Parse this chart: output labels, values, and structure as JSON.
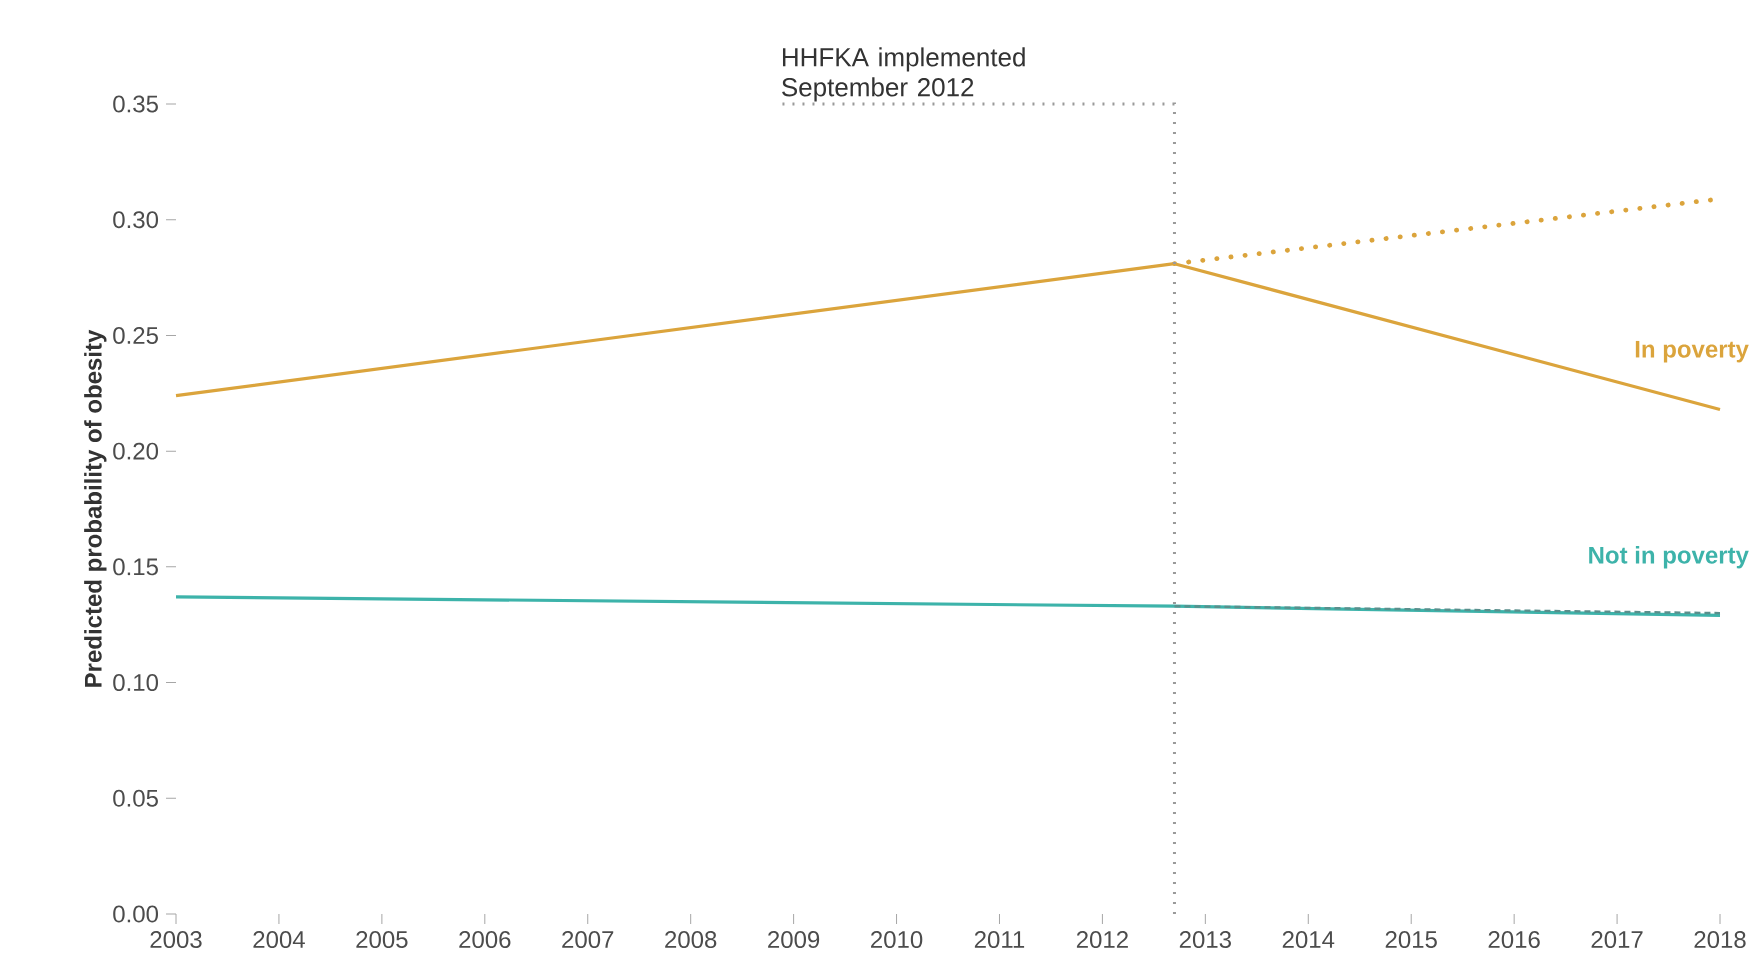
{
  "chart_data": {
    "type": "line",
    "ylabel": "Predicted probability of obesity",
    "xlim": [
      2003,
      2018
    ],
    "ylim": [
      0,
      0.35
    ],
    "xticks": [
      2003,
      2004,
      2005,
      2006,
      2007,
      2008,
      2009,
      2010,
      2011,
      2012,
      2013,
      2014,
      2015,
      2016,
      2017,
      2018
    ],
    "yticks": [
      {
        "value": 0,
        "label": "0.00"
      },
      {
        "value": 0.05,
        "label": "0.05"
      },
      {
        "value": 0.1,
        "label": "0.10"
      },
      {
        "value": 0.15,
        "label": "0.15"
      },
      {
        "value": 0.2,
        "label": "0.20"
      },
      {
        "value": 0.25,
        "label": "0.25"
      },
      {
        "value": 0.3,
        "label": "0.30"
      },
      {
        "value": 0.35,
        "label": "0.35"
      }
    ],
    "series": [
      {
        "name": "In poverty",
        "color": "#dba43c",
        "x": [
          2003,
          2012.7,
          2018
        ],
        "values": [
          0.224,
          0.281,
          0.218
        ],
        "line_style": "solid"
      },
      {
        "color": "#dba43c",
        "x": [
          2012.7,
          2018
        ],
        "values": [
          0.281,
          0.309
        ],
        "line_style": "dotted"
      },
      {
        "name": "Not in poverty",
        "color": "#3db3aa",
        "x": [
          2003,
          2012.7,
          2018
        ],
        "values": [
          0.137,
          0.133,
          0.129
        ],
        "line_style": "solid"
      },
      {
        "color": "#5a8f8c",
        "x": [
          2012.7,
          2018
        ],
        "values": [
          0.133,
          0.13
        ],
        "line_style": "dashed"
      }
    ],
    "ref_lines": [
      {
        "axis": "x",
        "value": 2012.7,
        "label": "HHFKA implemented September 2012",
        "color": "#9a9a9a",
        "line_style": "dotted"
      }
    ],
    "legend": false,
    "grid": false,
    "marker": "none"
  }
}
